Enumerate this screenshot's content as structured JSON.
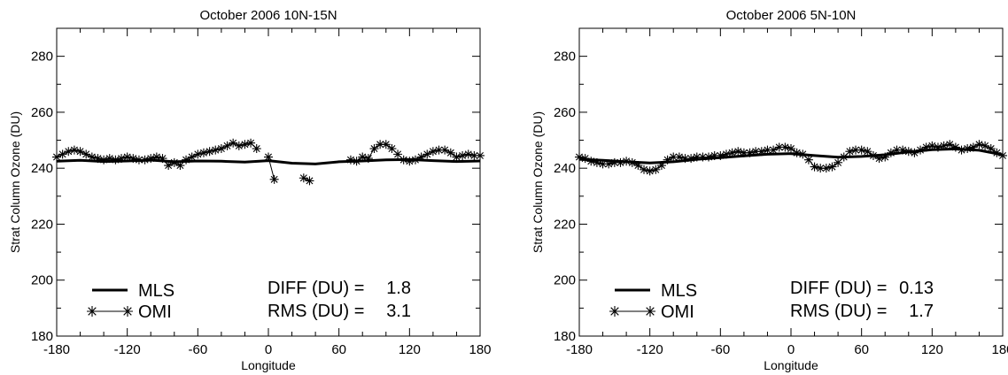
{
  "chart_data": [
    {
      "type": "line",
      "title": "October 2006     10N-15N",
      "xlabel": "Longitude",
      "ylabel": "Strat Column Ozone (DU)",
      "xlim": [
        -180,
        180
      ],
      "ylim": [
        180,
        290
      ],
      "xticks": [
        "-180",
        "-120",
        "-60",
        "0",
        "60",
        "120",
        "180"
      ],
      "yticks": [
        "180",
        "200",
        "220",
        "240",
        "260",
        "280"
      ],
      "legend_position": "bottom-left",
      "stats": [
        {
          "label": "DIFF (DU) =",
          "value": "1.8"
        },
        {
          "label": "RMS (DU) =",
          "value": "3.1"
        }
      ],
      "series": [
        {
          "name": "MLS",
          "style": "thick-line",
          "x": [
            -180,
            -160,
            -140,
            -120,
            -100,
            -80,
            -60,
            -40,
            -20,
            0,
            20,
            40,
            60,
            80,
            100,
            120,
            140,
            160,
            180
          ],
          "y": [
            242.5,
            242.8,
            242.4,
            242.6,
            242.9,
            242.3,
            242.6,
            242.5,
            242.2,
            242.7,
            241.8,
            241.5,
            242.3,
            242.6,
            243.0,
            243.1,
            242.7,
            242.4,
            242.6
          ]
        },
        {
          "name": "OMI",
          "style": "asterisk-line",
          "x": [
            -180,
            -175,
            -170,
            -165,
            -160,
            -155,
            -150,
            -145,
            -140,
            -135,
            -130,
            -125,
            -120,
            -115,
            -110,
            -105,
            -100,
            -95,
            -90,
            -85,
            -80,
            -75,
            -70,
            -65,
            -60,
            -55,
            -50,
            -45,
            -40,
            -35,
            -30,
            -25,
            -20,
            -15,
            -10,
            0,
            5,
            30,
            35,
            70,
            75,
            80,
            85,
            90,
            95,
            100,
            105,
            110,
            115,
            120,
            125,
            130,
            135,
            140,
            145,
            150,
            155,
            160,
            165,
            170,
            175,
            180
          ],
          "y": [
            244,
            245,
            246,
            246.5,
            246,
            245,
            244,
            243.5,
            243,
            243.5,
            243,
            243.5,
            244,
            243.5,
            243,
            243,
            243.5,
            244,
            243.5,
            241,
            242,
            241,
            243,
            244,
            245,
            245.5,
            246,
            246.5,
            247,
            248,
            249,
            248,
            248.5,
            249,
            247,
            244,
            236,
            236.5,
            235.5,
            243,
            242.5,
            244,
            243.5,
            247,
            248.5,
            248.5,
            247,
            245,
            243,
            242.5,
            243,
            244,
            245,
            246,
            246.5,
            246.5,
            245.5,
            244,
            244.5,
            245,
            244.5,
            244.5
          ],
          "breaks_after_x": [
            -10,
            5,
            35
          ]
        }
      ]
    },
    {
      "type": "line",
      "title": "October 2006     5N-10N",
      "xlabel": "Longitude",
      "ylabel": "Strat Column Ozone (DU)",
      "xlim": [
        -180,
        180
      ],
      "ylim": [
        180,
        290
      ],
      "xticks": [
        "-180",
        "-120",
        "-60",
        "0",
        "60",
        "120",
        "180"
      ],
      "yticks": [
        "180",
        "200",
        "220",
        "240",
        "260",
        "280"
      ],
      "legend_position": "bottom-left",
      "stats": [
        {
          "label": "DIFF (DU) =",
          "value": "0.13"
        },
        {
          "label": "RMS (DU) =",
          "value": "1.7"
        }
      ],
      "series": [
        {
          "name": "MLS",
          "style": "thick-line",
          "x": [
            -180,
            -160,
            -140,
            -120,
            -100,
            -80,
            -60,
            -40,
            -20,
            0,
            20,
            40,
            60,
            80,
            100,
            120,
            140,
            160,
            180
          ],
          "y": [
            243.2,
            242.8,
            242.3,
            241.9,
            242.3,
            243.2,
            243.8,
            244.4,
            245.0,
            245.2,
            244.5,
            243.9,
            244.2,
            244.8,
            245.8,
            246.6,
            246.9,
            246.4,
            244.8
          ]
        },
        {
          "name": "OMI",
          "style": "asterisk-line",
          "x": [
            -180,
            -175,
            -170,
            -165,
            -160,
            -155,
            -150,
            -145,
            -140,
            -135,
            -130,
            -125,
            -120,
            -115,
            -110,
            -105,
            -100,
            -95,
            -90,
            -85,
            -80,
            -75,
            -70,
            -65,
            -60,
            -55,
            -50,
            -45,
            -40,
            -35,
            -30,
            -25,
            -20,
            -15,
            -10,
            -5,
            0,
            5,
            10,
            15,
            20,
            25,
            30,
            35,
            40,
            45,
            50,
            55,
            60,
            65,
            70,
            75,
            80,
            85,
            90,
            95,
            100,
            105,
            110,
            115,
            120,
            125,
            130,
            135,
            140,
            145,
            150,
            155,
            160,
            165,
            170,
            175,
            180
          ],
          "y": [
            244,
            243.5,
            242.5,
            242,
            241.5,
            241.5,
            242,
            242,
            242.5,
            242,
            241,
            239.5,
            239,
            239.5,
            241,
            243,
            244,
            244,
            243.5,
            243.5,
            244,
            244,
            244,
            244.5,
            244.5,
            245,
            245.5,
            246,
            245.5,
            245.5,
            246,
            246,
            246.5,
            246.5,
            247.5,
            247.5,
            247,
            245.5,
            245,
            243,
            240.5,
            240,
            240,
            240.5,
            242,
            244,
            246,
            246.5,
            246.5,
            246,
            244.5,
            243.5,
            244,
            245.5,
            246.5,
            246.5,
            246,
            245.5,
            246.5,
            247.5,
            248,
            247.5,
            248,
            248.5,
            247.5,
            246.5,
            247,
            247.5,
            248.5,
            248,
            247,
            245.5,
            244.5
          ]
        }
      ]
    }
  ]
}
